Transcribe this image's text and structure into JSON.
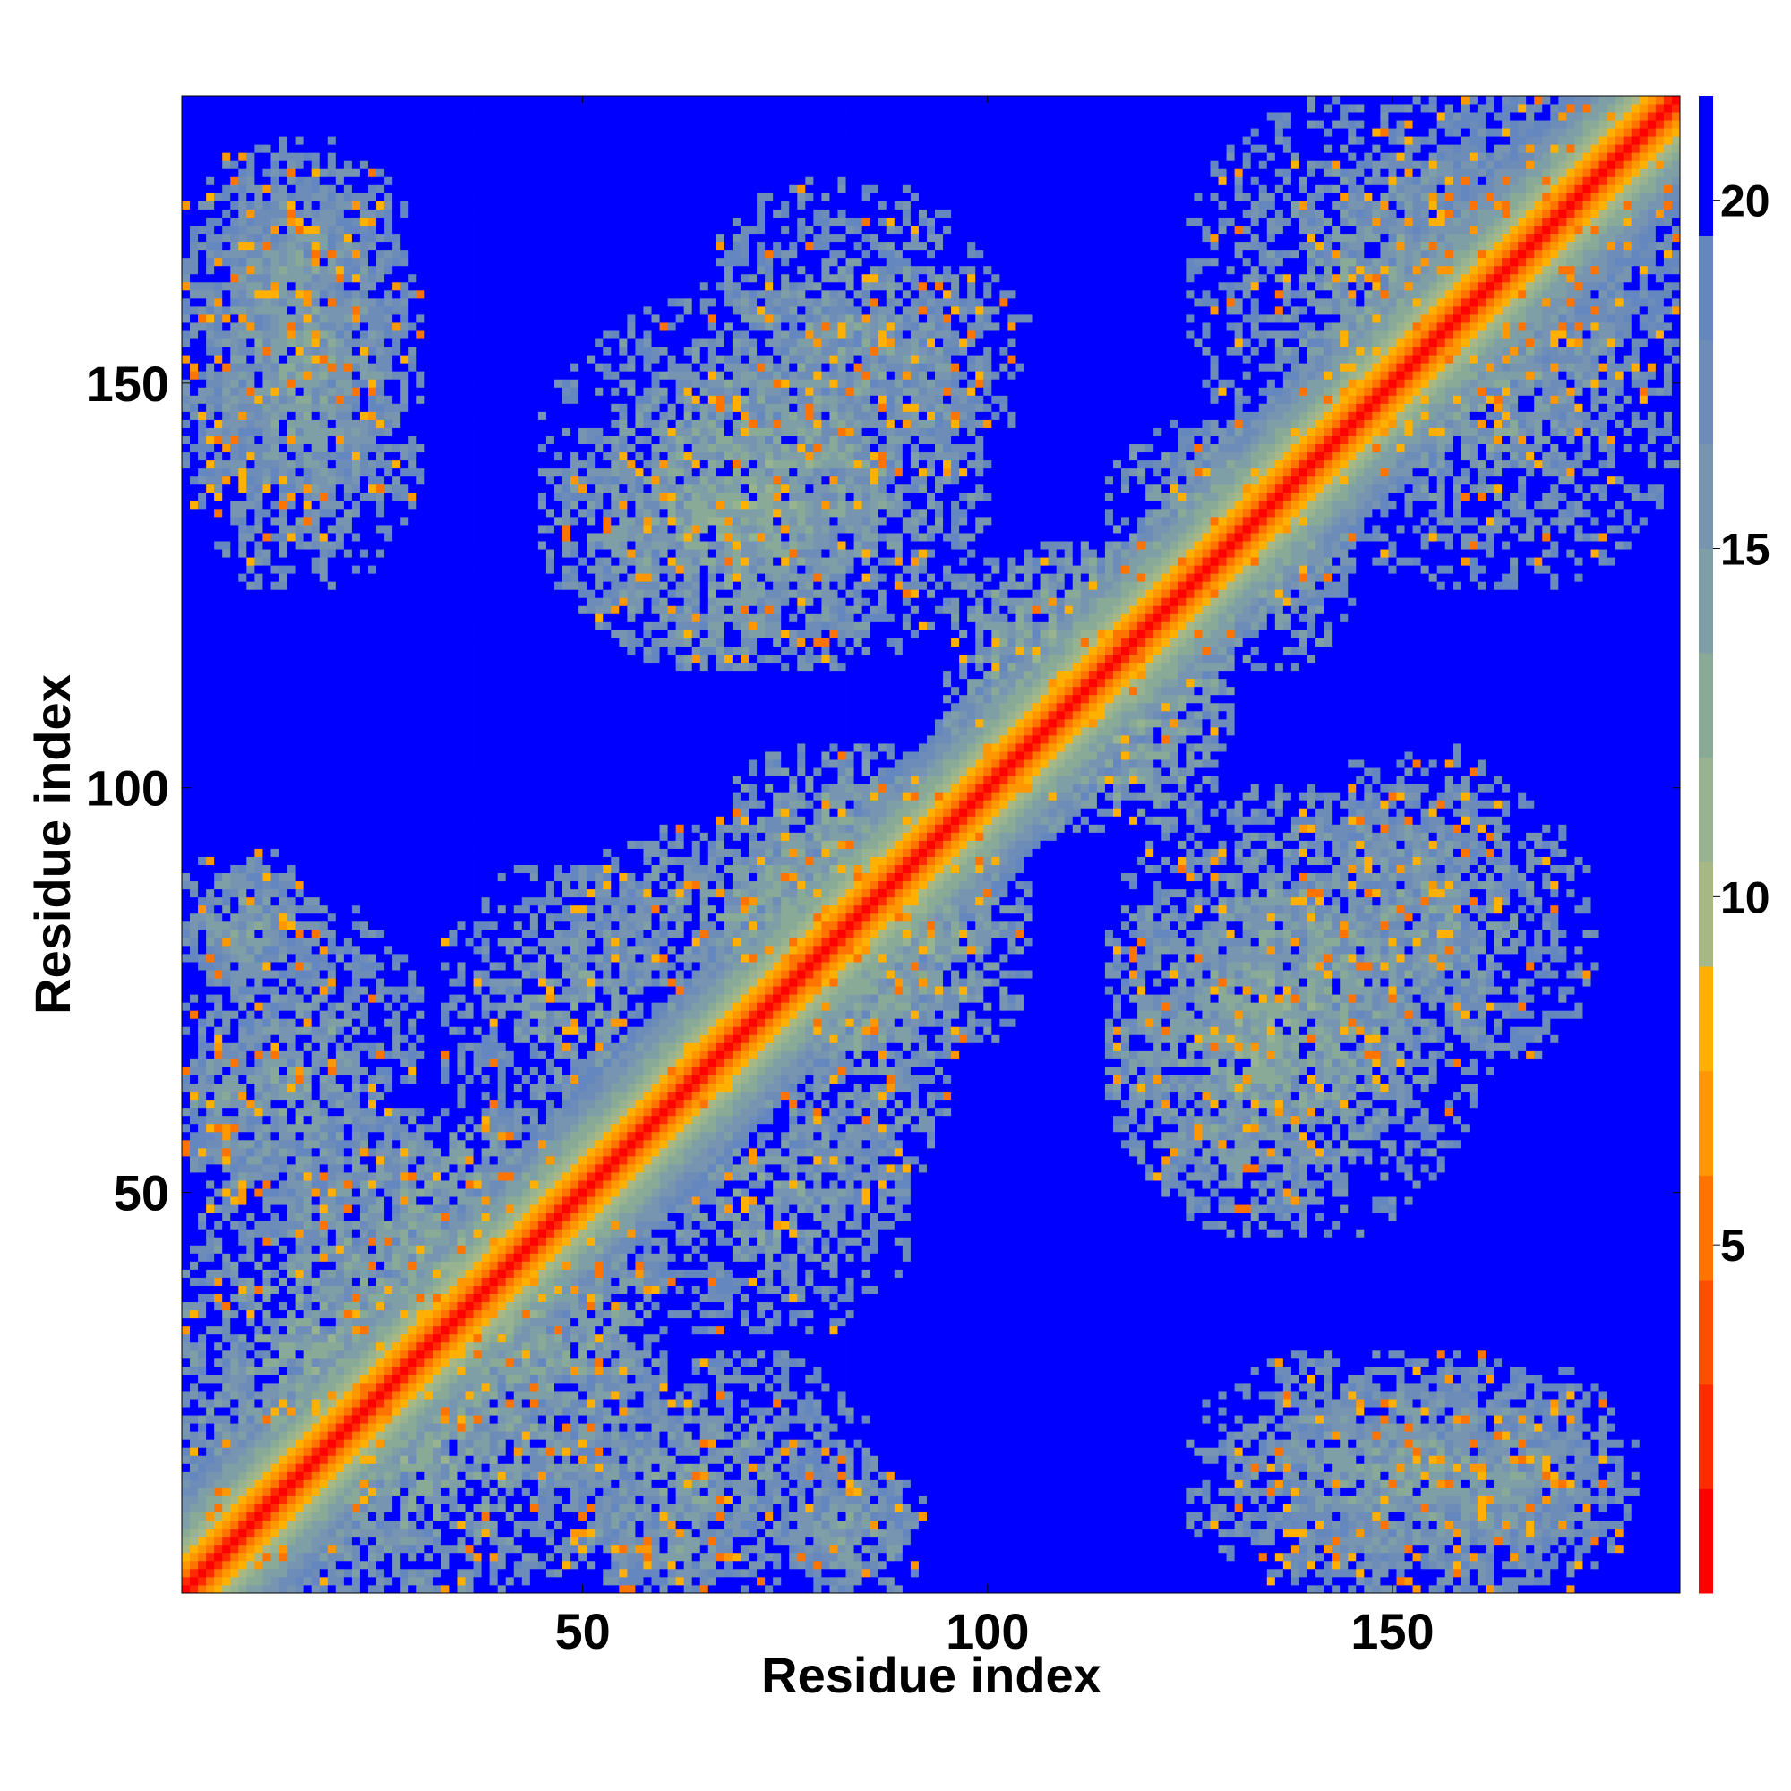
{
  "chart_data": {
    "type": "heatmap",
    "title": "",
    "xlabel": "Residue index",
    "ylabel": "Residue index",
    "n_residues": 185,
    "xlim": [
      1,
      185
    ],
    "ylim": [
      1,
      185
    ],
    "x_ticks": [
      50,
      100,
      150
    ],
    "y_ticks": [
      50,
      100,
      150
    ],
    "colorbar": {
      "range": [
        0,
        21.5
      ],
      "ticks": [
        5,
        10,
        15,
        20
      ],
      "levels": [
        {
          "max": 1.5,
          "color": "#ff0000"
        },
        {
          "max": 3.0,
          "color": "#ff2a00"
        },
        {
          "max": 4.5,
          "color": "#ff4e00"
        },
        {
          "max": 6.0,
          "color": "#ff7300"
        },
        {
          "max": 7.5,
          "color": "#ff9800"
        },
        {
          "max": 9.0,
          "color": "#ffb000"
        },
        {
          "max": 10.5,
          "color": "#a8b884"
        },
        {
          "max": 12.0,
          "color": "#98b390"
        },
        {
          "max": 13.5,
          "color": "#8aaa98"
        },
        {
          "max": 15.0,
          "color": "#7f9fa7"
        },
        {
          "max": 16.5,
          "color": "#7795b0"
        },
        {
          "max": 18.0,
          "color": "#6d8cb8"
        },
        {
          "max": 19.5,
          "color": "#6487c0"
        },
        {
          "max": 21.5,
          "color": "#0000ff"
        }
      ]
    },
    "description_values": {
      "diagonal": 0,
      "off_cutoff": 21.5
    },
    "contact_blocks": [
      {
        "x": [
          1,
          28
        ],
        "y": [
          130,
          178
        ],
        "d": 14.5
      },
      {
        "x": [
          48,
          88
        ],
        "y": [
          115,
          150
        ],
        "d": 13.5
      },
      {
        "x": [
          78,
          105
        ],
        "y": [
          140,
          165
        ],
        "d": 15.5
      },
      {
        "x": [
          125,
          175
        ],
        "y": [
          140,
          185
        ],
        "d": 14.5
      },
      {
        "x": [
          145,
          185
        ],
        "y": [
          150,
          185
        ],
        "d": 15.5
      },
      {
        "x": [
          100,
          130
        ],
        "y": [
          95,
          130
        ],
        "d": 12.5
      },
      {
        "x": [
          120,
          145
        ],
        "y": [
          115,
          145
        ],
        "d": 13.5
      },
      {
        "x": [
          65,
          100
        ],
        "y": [
          70,
          105
        ],
        "d": 13.0
      },
      {
        "x": [
          48,
          95
        ],
        "y": [
          75,
          95
        ],
        "d": 14.0
      },
      {
        "x": [
          1,
          15
        ],
        "y": [
          75,
          92
        ],
        "d": 14.5
      },
      {
        "x": [
          1,
          15
        ],
        "y": [
          50,
          72
        ],
        "d": 14.0
      },
      {
        "x": [
          1,
          35
        ],
        "y": [
          1,
          58
        ],
        "d": 13.5
      },
      {
        "x": [
          20,
          60
        ],
        "y": [
          15,
          55
        ],
        "d": 13.0
      },
      {
        "x": [
          45,
          85
        ],
        "y": [
          1,
          30
        ],
        "d": 14.5
      },
      {
        "x": [
          75,
          90
        ],
        "y": [
          1,
          18
        ],
        "d": 15.0
      },
      {
        "x": [
          115,
          160
        ],
        "y": [
          45,
          100
        ],
        "d": 13.5
      },
      {
        "x": [
          135,
          175
        ],
        "y": [
          65,
          100
        ],
        "d": 14.5
      },
      {
        "x": [
          125,
          175
        ],
        "y": [
          1,
          30
        ],
        "d": 14.5
      },
      {
        "x": [
          150,
          180
        ],
        "y": [
          1,
          28
        ],
        "d": 15.0
      },
      {
        "x": [
          33,
          65
        ],
        "y": [
          55,
          90
        ],
        "d": 14.5
      }
    ]
  }
}
